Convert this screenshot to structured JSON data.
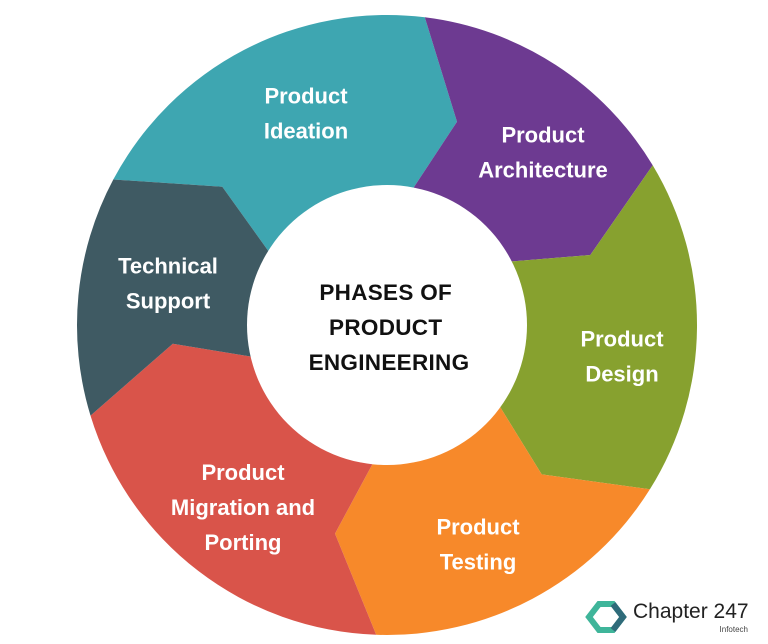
{
  "center": {
    "lines": [
      "PHASES OF",
      "PRODUCT",
      "ENGINEERING"
    ]
  },
  "segments": [
    {
      "lines": [
        "Product",
        "Ideation"
      ],
      "color": "#3ea6b1"
    },
    {
      "lines": [
        "Product",
        "Architecture"
      ],
      "color": "#6d3a91"
    },
    {
      "lines": [
        "Product",
        "Design"
      ],
      "color": "#87a12f"
    },
    {
      "lines": [
        "Product",
        "Testing"
      ],
      "color": "#f7892a"
    },
    {
      "lines": [
        "Product",
        "Migration and",
        "Porting"
      ],
      "color": "#d9544a"
    },
    {
      "lines": [
        "Technical",
        "Support"
      ],
      "color": "#3f5a63"
    }
  ],
  "brand": {
    "name": "Chapter 247",
    "sub": "Infotech",
    "colors": [
      "#3fb59a",
      "#2f6b7a"
    ]
  }
}
